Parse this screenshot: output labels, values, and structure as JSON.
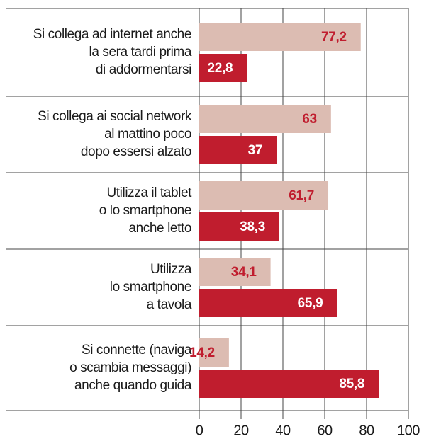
{
  "chart_data": {
    "type": "bar",
    "orientation": "horizontal",
    "categories": [
      [
        "Si collega ad internet anche",
        "la sera tardi prima",
        "di addormentarsi"
      ],
      [
        "Si collega ai social network",
        "al mattino poco",
        "dopo essersi alzato"
      ],
      [
        "Utilizza il tablet",
        "o lo smartphone",
        "anche letto"
      ],
      [
        "Utilizza",
        "lo smartphone",
        "a tavola"
      ],
      [
        "Si connette (naviga",
        "o scambia messaggi)",
        "anche quando guida"
      ]
    ],
    "series": [
      {
        "color": "#dcbcb2",
        "label_color": "#c01d2e",
        "values": [
          77.2,
          63,
          61.7,
          34.1,
          14.2
        ],
        "value_labels": [
          "77,2",
          "63",
          "61,7",
          "34,1",
          "14,2"
        ]
      },
      {
        "color": "#c01d2e",
        "label_color": "#ffffff",
        "values": [
          22.8,
          37,
          38.3,
          65.9,
          85.8
        ],
        "value_labels": [
          "22,8",
          "37",
          "38,3",
          "65,9",
          "85,8"
        ]
      }
    ],
    "xlim": [
      0,
      100
    ],
    "xticks": [
      0,
      20,
      40,
      60,
      80,
      100
    ],
    "grid": true
  }
}
